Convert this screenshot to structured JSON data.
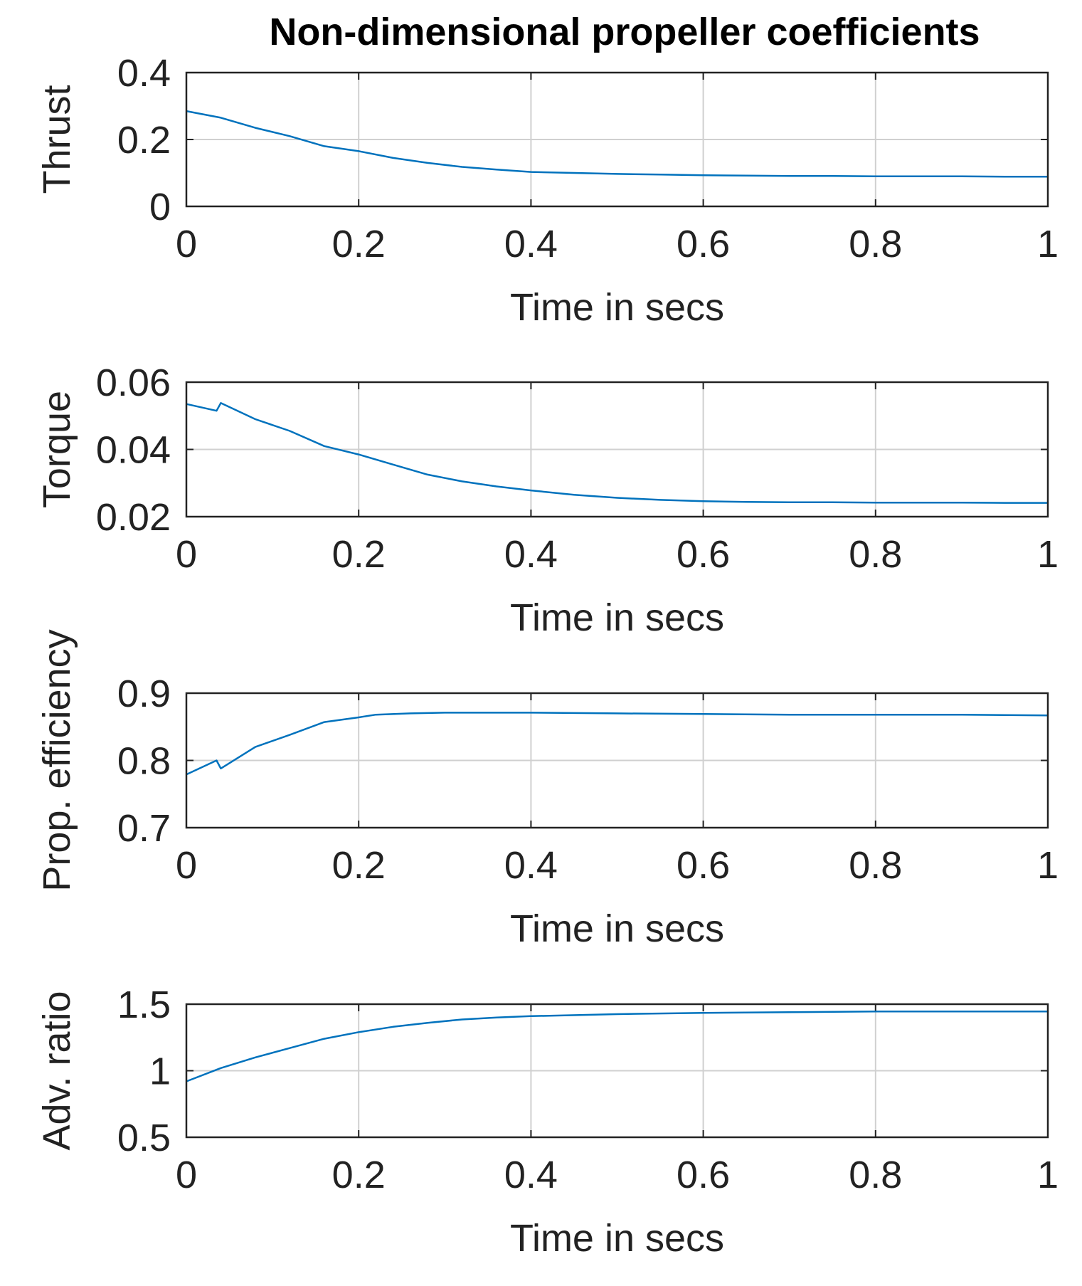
{
  "chart_data": [
    {
      "type": "line",
      "title": "Non-dimensional propeller coefficients",
      "xlabel": "Time in secs",
      "ylabel": "Thrust",
      "xlim": [
        0,
        1
      ],
      "ylim": [
        0,
        0.4
      ],
      "xticks": [
        "0",
        "0.2",
        "0.4",
        "0.6",
        "0.8",
        "1"
      ],
      "yticks": [
        "0",
        "0.2",
        "0.4"
      ],
      "grid": true,
      "series": [
        {
          "name": "Thrust",
          "color": "#0072BD",
          "x": [
            0,
            0.04,
            0.08,
            0.12,
            0.16,
            0.2,
            0.24,
            0.28,
            0.32,
            0.36,
            0.4,
            0.45,
            0.5,
            0.55,
            0.6,
            0.65,
            0.7,
            0.75,
            0.8,
            0.85,
            0.9,
            0.95,
            1.0
          ],
          "y": [
            0.285,
            0.265,
            0.235,
            0.21,
            0.18,
            0.165,
            0.145,
            0.13,
            0.118,
            0.11,
            0.103,
            0.1,
            0.097,
            0.095,
            0.093,
            0.092,
            0.091,
            0.091,
            0.09,
            0.09,
            0.09,
            0.089,
            0.089
          ]
        }
      ]
    },
    {
      "type": "line",
      "xlabel": "Time in secs",
      "ylabel": "Torque",
      "xlim": [
        0,
        1
      ],
      "ylim": [
        0.02,
        0.06
      ],
      "xticks": [
        "0",
        "0.2",
        "0.4",
        "0.6",
        "0.8",
        "1"
      ],
      "yticks": [
        "0.02",
        "0.04",
        "0.06"
      ],
      "grid": true,
      "series": [
        {
          "name": "Torque",
          "color": "#0072BD",
          "x": [
            0,
            0.035,
            0.04,
            0.045,
            0.08,
            0.12,
            0.16,
            0.2,
            0.24,
            0.28,
            0.32,
            0.36,
            0.4,
            0.45,
            0.5,
            0.55,
            0.6,
            0.65,
            0.7,
            0.75,
            0.8,
            0.85,
            0.9,
            0.95,
            1.0
          ],
          "y": [
            0.0535,
            0.0515,
            0.0538,
            0.0532,
            0.049,
            0.0455,
            0.041,
            0.0385,
            0.0355,
            0.0325,
            0.0305,
            0.029,
            0.0278,
            0.0265,
            0.0256,
            0.025,
            0.0246,
            0.0244,
            0.0243,
            0.0243,
            0.0242,
            0.0242,
            0.0242,
            0.0241,
            0.0241
          ]
        }
      ]
    },
    {
      "type": "line",
      "xlabel": "Time in secs",
      "ylabel": "Prop. efficiency",
      "xlim": [
        0,
        1
      ],
      "ylim": [
        0.7,
        0.9
      ],
      "xticks": [
        "0",
        "0.2",
        "0.4",
        "0.6",
        "0.8",
        "1"
      ],
      "yticks": [
        "0.7",
        "0.8",
        "0.9"
      ],
      "grid": true,
      "series": [
        {
          "name": "Prop. efficiency",
          "color": "#0072BD",
          "x": [
            0,
            0.035,
            0.04,
            0.045,
            0.08,
            0.12,
            0.16,
            0.2,
            0.22,
            0.26,
            0.3,
            0.4,
            0.5,
            0.6,
            0.7,
            0.8,
            0.9,
            1.0
          ],
          "y": [
            0.779,
            0.8,
            0.788,
            0.792,
            0.82,
            0.838,
            0.857,
            0.864,
            0.868,
            0.87,
            0.871,
            0.871,
            0.87,
            0.869,
            0.868,
            0.868,
            0.868,
            0.867
          ]
        }
      ]
    },
    {
      "type": "line",
      "xlabel": "Time in secs",
      "ylabel": "Adv. ratio",
      "xlim": [
        0,
        1
      ],
      "ylim": [
        0.5,
        1.5
      ],
      "xticks": [
        "0",
        "0.2",
        "0.4",
        "0.6",
        "0.8",
        "1"
      ],
      "yticks": [
        "0.5",
        "1",
        "1.5"
      ],
      "grid": true,
      "series": [
        {
          "name": "Adv. ratio",
          "color": "#0072BD",
          "x": [
            0,
            0.04,
            0.08,
            0.12,
            0.16,
            0.2,
            0.24,
            0.28,
            0.32,
            0.36,
            0.4,
            0.5,
            0.6,
            0.7,
            0.8,
            0.9,
            1.0
          ],
          "y": [
            0.92,
            1.02,
            1.1,
            1.17,
            1.24,
            1.29,
            1.33,
            1.36,
            1.385,
            1.4,
            1.41,
            1.425,
            1.435,
            1.44,
            1.445,
            1.445,
            1.445
          ]
        }
      ]
    }
  ]
}
